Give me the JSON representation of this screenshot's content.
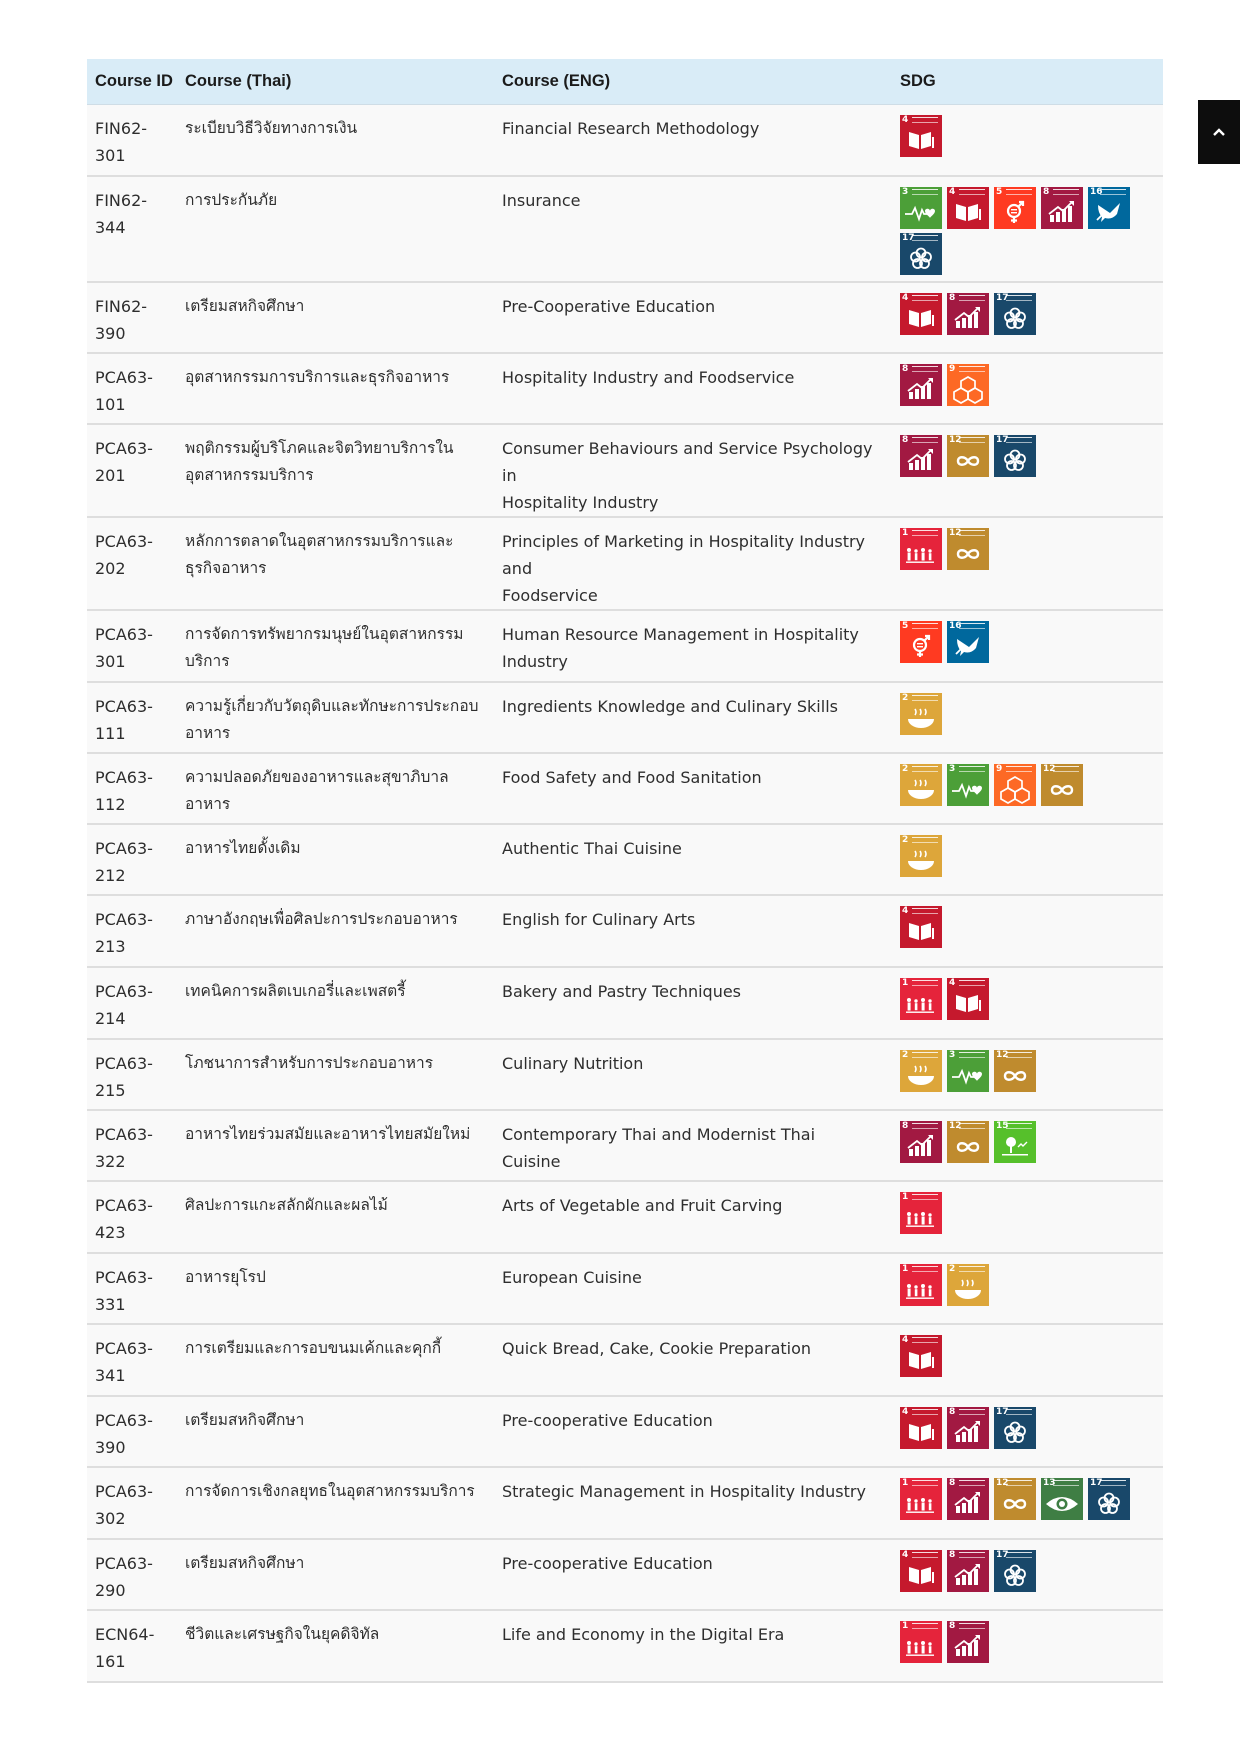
{
  "table": {
    "headers": {
      "id": "Course ID",
      "thai": "Course (Thai)",
      "eng": "Course (ENG)",
      "sdg": "SDG"
    },
    "rows": [
      {
        "id": "FIN62-\n301",
        "thai": "ระเบียบวิธีวิจัยทางการเงิน",
        "eng": "Financial Research Methodology",
        "sdgs": [
          4
        ]
      },
      {
        "id": "FIN62-\n344",
        "thai": "การประกันภัย",
        "eng": "Insurance",
        "sdgs": [
          3,
          4,
          5,
          8,
          16,
          17
        ]
      },
      {
        "id": "FIN62-\n390",
        "thai": "เตรียมสหกิจศึกษา",
        "eng": "Pre-Cooperative Education",
        "sdgs": [
          4,
          8,
          17
        ]
      },
      {
        "id": "PCA63-\n101",
        "thai": "อุตสาหกรรมการบริการและธุรกิจอาหาร",
        "eng": "Hospitality Industry and Foodservice",
        "sdgs": [
          8,
          9
        ]
      },
      {
        "id": "PCA63-\n201",
        "thai": "พฤติกรรมผู้บริโภคและจิตวิทยาบริการใน\nอุตสาหกรรมบริการ",
        "eng": "Consumer Behaviours and Service Psychology in\nHospitality Industry",
        "sdgs": [
          8,
          12,
          17
        ]
      },
      {
        "id": "PCA63-\n202",
        "thai": "หลักการตลาดในอุตสาหกรรมบริการและ\nธุรกิจอาหาร",
        "eng": "Principles of Marketing in Hospitality Industry and\nFoodservice",
        "sdgs": [
          1,
          12
        ]
      },
      {
        "id": "PCA63-\n301",
        "thai": "การจัดการทรัพยากรมนุษย์ในอุตสาหกรรม\nบริการ",
        "eng": "Human Resource Management in Hospitality\nIndustry",
        "sdgs": [
          5,
          16
        ]
      },
      {
        "id": "PCA63-\n111",
        "thai": "ความรู้เกี่ยวกับวัตถุดิบและทักษะการประกอบ\nอาหาร",
        "eng": "Ingredients Knowledge and Culinary Skills",
        "sdgs": [
          2
        ]
      },
      {
        "id": "PCA63-\n112",
        "thai": "ความปลอดภัยของอาหารและสุขาภิบาล\nอาหาร",
        "eng": "Food Safety and Food Sanitation",
        "sdgs": [
          2,
          3,
          9,
          12
        ]
      },
      {
        "id": "PCA63-\n212",
        "thai": "อาหารไทยดั้งเดิม",
        "eng": "Authentic Thai Cuisine",
        "sdgs": [
          2
        ]
      },
      {
        "id": "PCA63-\n213",
        "thai": "ภาษาอังกฤษเพื่อศิลปะการประกอบอาหาร",
        "eng": "English for Culinary Arts",
        "sdgs": [
          4
        ]
      },
      {
        "id": "PCA63-\n214",
        "thai": "เทคนิคการผลิตเบเกอรี่และเพสตรี้",
        "eng": "Bakery and Pastry Techniques",
        "sdgs": [
          1,
          4
        ]
      },
      {
        "id": "PCA63-\n215",
        "thai": "โภชนาการสำหรับการประกอบอาหาร",
        "eng": "Culinary Nutrition",
        "sdgs": [
          2,
          3,
          12
        ]
      },
      {
        "id": "PCA63-\n322",
        "thai": "อาหารไทยร่วมสมัยและอาหารไทยสมัยใหม่",
        "eng": "Contemporary Thai and Modernist Thai Cuisine",
        "sdgs": [
          8,
          12,
          15
        ]
      },
      {
        "id": "PCA63-\n423",
        "thai": "ศิลปะการแกะสลักผักและผลไม้",
        "eng": "Arts of Vegetable and Fruit Carving",
        "sdgs": [
          1
        ]
      },
      {
        "id": "PCA63-\n331",
        "thai": "อาหารยุโรป",
        "eng": "European Cuisine",
        "sdgs": [
          1,
          2
        ]
      },
      {
        "id": "PCA63-\n341",
        "thai": "การเตรียมและการอบขนมเค้กและคุกกี้",
        "eng": "Quick Bread, Cake, Cookie Preparation",
        "sdgs": [
          4
        ]
      },
      {
        "id": "PCA63-\n390",
        "thai": "เตรียมสหกิจศึกษา",
        "eng": "Pre-cooperative Education",
        "sdgs": [
          4,
          8,
          17
        ]
      },
      {
        "id": "PCA63-\n302",
        "thai": "การจัดการเชิงกลยุทธในอุตสาหกรรมบริการ",
        "eng": "Strategic Management in Hospitality Industry",
        "sdgs": [
          1,
          8,
          12,
          13,
          17
        ]
      },
      {
        "id": "PCA63-\n290",
        "thai": "เตรียมสหกิจศึกษา",
        "eng": "Pre-cooperative Education",
        "sdgs": [
          4,
          8,
          17
        ]
      },
      {
        "id": "ECN64-\n161",
        "thai": "ชีวิตและเศรษฐกิจในยุคดิจิทัล",
        "eng": "Life and Economy in the Digital Era",
        "sdgs": [
          1,
          8
        ]
      }
    ]
  },
  "sdg_colors": {
    "1": "#E5243B",
    "2": "#DDA63A",
    "3": "#4C9F38",
    "4": "#C5192D",
    "5": "#FF3A21",
    "8": "#A21942",
    "9": "#FD6925",
    "12": "#BF8B2E",
    "13": "#3F7E44",
    "15": "#56C02B",
    "16": "#00689D",
    "17": "#19486A"
  },
  "sdg_icons": {
    "1": "family-icon",
    "2": "bowl-icon",
    "3": "heartbeat-icon",
    "4": "book-icon",
    "5": "gender-icon",
    "8": "growth-chart-icon",
    "9": "cubes-icon",
    "12": "infinity-icon",
    "13": "eye-globe-icon",
    "15": "tree-icon",
    "16": "dove-icon",
    "17": "flower-icon"
  },
  "scroll_top": {
    "icon": "chevron-up-icon",
    "glyph": "⌃"
  }
}
